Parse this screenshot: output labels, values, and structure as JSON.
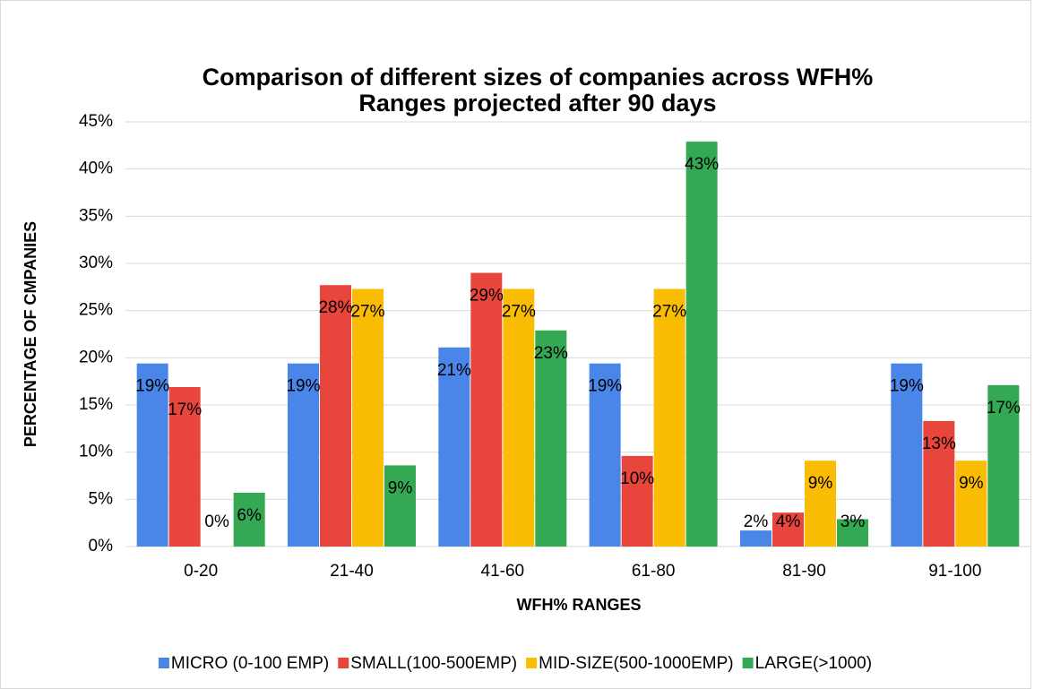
{
  "chart_data": {
    "type": "bar",
    "title": "Comparison of different sizes of companies across WFH%",
    "subtitle": "Ranges projected after 90 days",
    "x_label": "WFH% RANGES",
    "y_label": "PERCENTAGE OF CMPANIES",
    "categories": [
      "0-20",
      "21-40",
      "41-60",
      "61-80",
      "81-90",
      "91-100"
    ],
    "series": [
      {
        "name": "MICRO (0-100 EMP)",
        "color": "#4a86e8",
        "values": [
          19.4,
          19.4,
          21.1,
          19.4,
          1.7,
          19.4
        ],
        "value_labels": [
          "19%",
          "19%",
          "21%",
          "19%",
          "2%",
          "19%"
        ]
      },
      {
        "name": "SMALL(100-500EMP)",
        "color": "#e8453c",
        "values": [
          16.9,
          27.7,
          29.0,
          9.6,
          3.6,
          13.3
        ],
        "value_labels": [
          "17%",
          "28%",
          "29%",
          "10%",
          "4%",
          "13%"
        ]
      },
      {
        "name": "MID-SIZE(500-1000EMP)",
        "color": "#fbbc04",
        "values": [
          0,
          27.3,
          27.3,
          27.3,
          9.1,
          9.1
        ],
        "value_labels": [
          "0%",
          "27%",
          "27%",
          "27%",
          "9%",
          "9%"
        ]
      },
      {
        "name": "LARGE(>1000)",
        "color": "#34a853",
        "values": [
          5.7,
          8.6,
          22.9,
          42.9,
          2.9,
          17.1
        ],
        "value_labels": [
          "6%",
          "9%",
          "23%",
          "43%",
          "3%",
          "17%"
        ]
      }
    ],
    "ylim": [
      0,
      45
    ],
    "yticks": [
      {
        "value": 0,
        "label": "0%"
      },
      {
        "value": 5,
        "label": "5%"
      },
      {
        "value": 10,
        "label": "10%"
      },
      {
        "value": 15,
        "label": "15%"
      },
      {
        "value": 20,
        "label": "20%"
      },
      {
        "value": 25,
        "label": "25%"
      },
      {
        "value": 30,
        "label": "30%"
      },
      {
        "value": 35,
        "label": "35%"
      },
      {
        "value": 40,
        "label": "40%"
      },
      {
        "value": 45,
        "label": "45%"
      }
    ],
    "grid": true,
    "legend": "bottom"
  }
}
